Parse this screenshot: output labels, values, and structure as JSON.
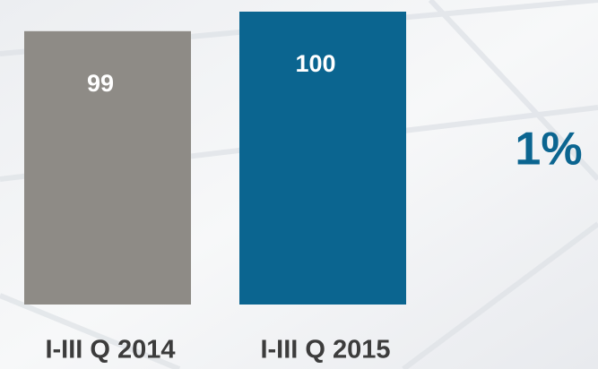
{
  "chart_data": {
    "type": "bar",
    "categories": [
      "I-III Q 2014",
      "I-III Q 2015"
    ],
    "values": [
      99,
      100
    ],
    "colors": [
      "#8e8b86",
      "#0b6590"
    ],
    "ylim": [
      85,
      100
    ],
    "annotations": [
      "1%"
    ],
    "grid": false
  }
}
